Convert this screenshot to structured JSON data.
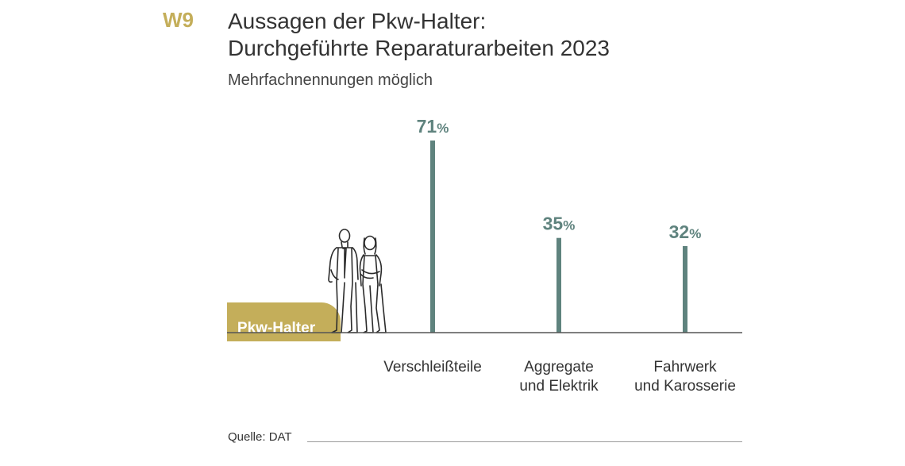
{
  "header": {
    "code": "W9",
    "title_line1": "Aussagen der Pkw-Halter:",
    "title_line2": "Durchgeführte Reparaturarbeiten 2023",
    "subtitle": "Mehrfachnennungen möglich"
  },
  "badge": {
    "label": "Pkw-Halter"
  },
  "source": "Quelle: DAT",
  "colors": {
    "bar": "#5f837e",
    "gold": "#c4ae5a",
    "text": "#333333",
    "axis": "#555555"
  },
  "chart_data": {
    "type": "bar",
    "categories": [
      [
        "Verschleißteile"
      ],
      [
        "Aggregate",
        "und Elektrik"
      ],
      [
        "Fahrwerk",
        "und Karosserie"
      ]
    ],
    "values": [
      71,
      35,
      32
    ],
    "unit": "%",
    "ylim": [
      0,
      71
    ]
  }
}
